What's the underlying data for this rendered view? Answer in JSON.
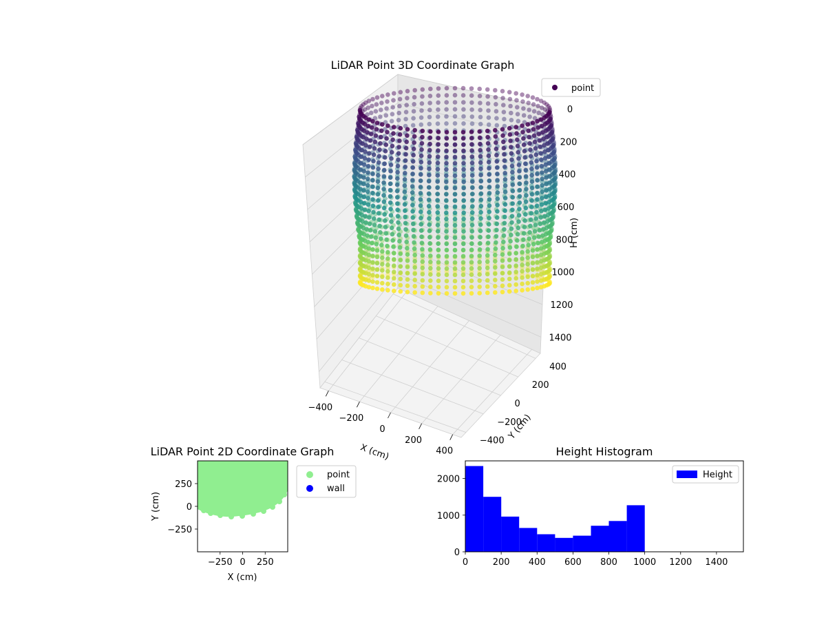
{
  "chart_data": [
    {
      "type": "scatter3d",
      "title": "LiDAR Point 3D Coordinate Graph",
      "xlabel": "X (cm)",
      "ylabel": "Y (cm)",
      "zlabel": "H (cm)",
      "xticks": [
        "−400",
        "−200",
        "0",
        "200",
        "400"
      ],
      "yticks": [
        "−400",
        "−200",
        "0",
        "200",
        "400"
      ],
      "zticks": [
        "0",
        "200",
        "400",
        "600",
        "800",
        "1000",
        "1200",
        "1400"
      ],
      "xlim": [
        -450,
        450
      ],
      "ylim": [
        -450,
        450
      ],
      "zlim": [
        0,
        1500
      ],
      "z_inverted": true,
      "colormap": "viridis",
      "legend": [
        {
          "label": "point",
          "color": "#440154"
        }
      ],
      "legend_position": "top-right",
      "grid": true,
      "shape": {
        "description_free": true,
        "radius_cm": 430,
        "height_range_cm": [
          0,
          1000
        ],
        "columns": 72
      }
    },
    {
      "type": "scatter",
      "title": "LiDAR Point 2D Coordinate Graph",
      "xlabel": "X (cm)",
      "ylabel": "Y (cm)",
      "xticks": [
        "−250",
        "0",
        "250"
      ],
      "yticks": [
        "250",
        "0",
        "−250"
      ],
      "xlim": [
        -500,
        500
      ],
      "ylim": [
        -500,
        500
      ],
      "series": [
        {
          "name": "point",
          "color": "#90ee90"
        },
        {
          "name": "wall",
          "color": "#0000ff"
        }
      ],
      "legend_position": "outside-right"
    },
    {
      "type": "bar",
      "title": "Height Histogram",
      "xticks": [
        "0",
        "200",
        "400",
        "600",
        "800",
        "1000",
        "1200",
        "1400"
      ],
      "yticks": [
        "0",
        "1000",
        "2000"
      ],
      "xlim": [
        0,
        1550
      ],
      "ylim": [
        0,
        2480
      ],
      "bin_edges": [
        0,
        100,
        200,
        300,
        400,
        500,
        600,
        700,
        800,
        900,
        1000
      ],
      "values": [
        2340,
        1500,
        960,
        650,
        480,
        380,
        440,
        710,
        840,
        1270
      ],
      "series": [
        {
          "name": "Height",
          "color": "#0000ff"
        }
      ],
      "legend_position": "top-right"
    }
  ]
}
